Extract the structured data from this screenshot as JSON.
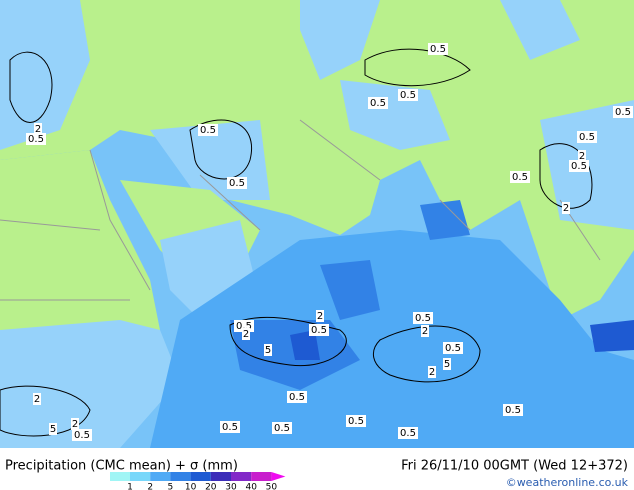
{
  "title": "Precipitation (CMC mean) + σ (mm)",
  "valid_time": "Fri 26/11/10 00GMT (Wed 12+372)",
  "credit": "©weatheronline.co.uk",
  "legend": {
    "levels": [
      1,
      2,
      5,
      10,
      20,
      30,
      40,
      50
    ],
    "colors": [
      "#a0f5f5",
      "#78d7fa",
      "#50aaf5",
      "#3282e6",
      "#1e5ad2",
      "#3c2db9",
      "#8228c8",
      "#c81ecd",
      "#f00af0"
    ]
  },
  "contour_labels": [
    "0.5",
    "0.5",
    "0.5",
    "2",
    "0.5",
    "0.5",
    "0.5",
    "0.5",
    "0.5",
    "2",
    "0.5",
    "0.5",
    "2",
    "2",
    "0.5",
    "2",
    "0.5",
    "5",
    "0.5",
    "2",
    "0.5",
    "5",
    "2",
    "0.5",
    "0.5",
    "0.5",
    "0.5",
    "0.5",
    "0.5",
    "2",
    "5",
    "2",
    "0.5"
  ]
}
